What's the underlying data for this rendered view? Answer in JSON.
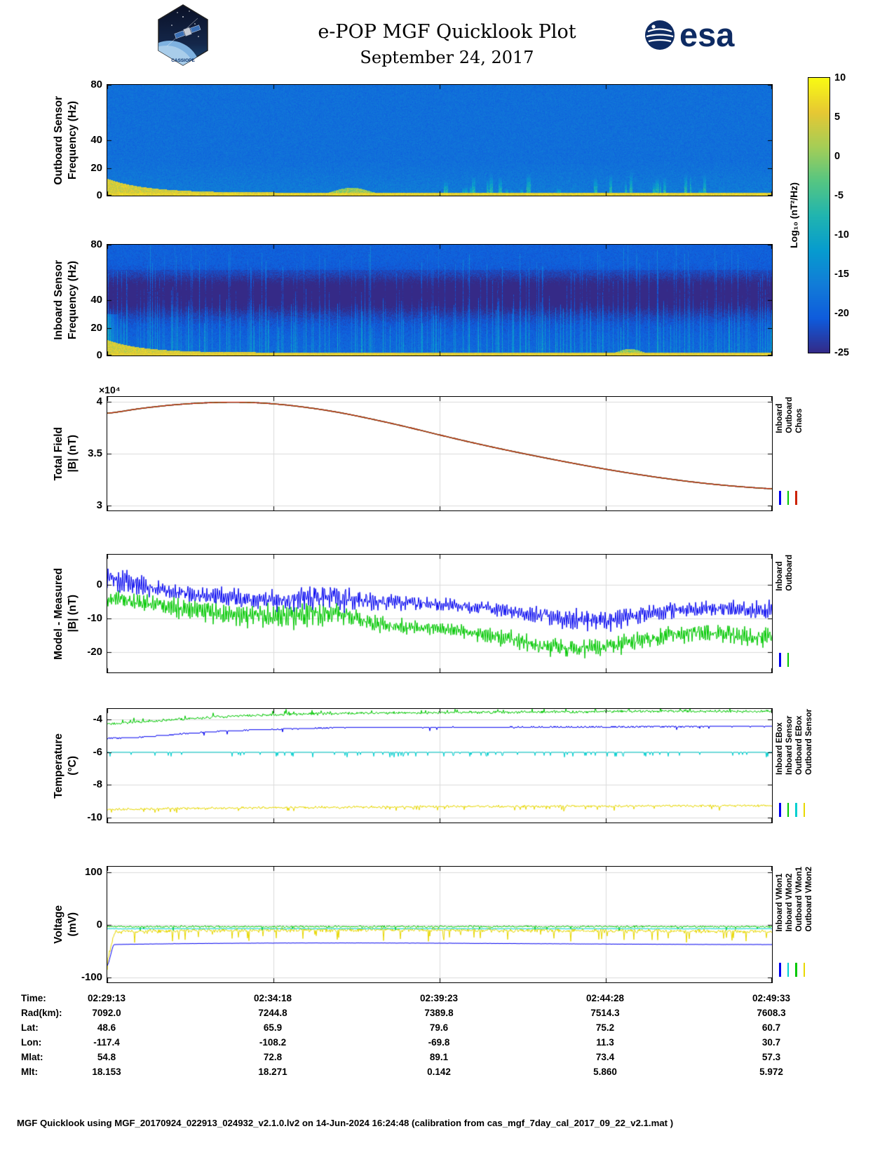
{
  "header": {
    "title": "e-POP MGF Quicklook Plot",
    "date": "September 24, 2017",
    "esa_logo_text": "esa",
    "cassiope_logo_text": "CASSIOPE"
  },
  "colorbar": {
    "label": "Log₁₀ (nT²/Hz)",
    "range": [
      -25,
      10
    ],
    "ticks": [
      10,
      5,
      0,
      -5,
      -10,
      -15,
      -20,
      -25
    ],
    "colormap": "parula",
    "colormap_stops": [
      "#352a87",
      "#0f5cdd",
      "#127dd8",
      "#079ccf",
      "#21b5b0",
      "#56c683",
      "#a6ce57",
      "#e7c834",
      "#f9fb14"
    ]
  },
  "chart_data": [
    {
      "type": "heatmap",
      "name": "outboard_spectrogram",
      "ylabel_lines": [
        "Outboard Sensor",
        "Frequency (Hz)"
      ],
      "ylim": [
        0,
        80
      ],
      "yticks": [
        0,
        20,
        40,
        80
      ],
      "ytick_labels": [
        "0",
        "20",
        "40",
        "80"
      ],
      "x_time_range": [
        "02:29:13",
        "02:49:33"
      ],
      "value_units": "Log₁₀ (nT²/Hz)",
      "background_level": -18,
      "noise_amp": 2.2,
      "elf_band_level": 6,
      "elf_band_top_hz": 3,
      "start_ridge_hz": 10,
      "burst_region_xfrac": [
        0.5,
        0.9
      ],
      "burst_count": 28,
      "seed": 42
    },
    {
      "type": "heatmap",
      "name": "inboard_spectrogram",
      "ylabel_lines": [
        "Inboard Sensor",
        "Frequency (Hz)"
      ],
      "ylim": [
        0,
        80
      ],
      "yticks": [
        0,
        20,
        40,
        80
      ],
      "ytick_labels": [
        "0",
        "20",
        "40",
        "80"
      ],
      "x_time_range": [
        "02:29:13",
        "02:49:33"
      ],
      "value_units": "Log₁₀ (nT²/Hz)",
      "background_level": -21,
      "noise_amp": 2.0,
      "dark_band_center_hz": 44,
      "dark_band_depth": 2.2,
      "stripe_count": 240,
      "elf_band_level": 5,
      "seed": 1234
    },
    {
      "type": "line",
      "name": "total_field",
      "ylabel_lines": [
        "Total Field",
        "|B| (nT)"
      ],
      "exp_label": "×10⁴",
      "ylim": [
        29520,
        40470
      ],
      "yticks": [
        30000,
        35000,
        40000
      ],
      "ytick_labels": [
        "3",
        "3.5",
        "4"
      ],
      "x_time_range": [
        "02:29:13",
        "02:49:33"
      ],
      "legend": {
        "names": [
          "Inboard",
          "Outboard",
          "Chaos"
        ],
        "colors": [
          "#0000f0",
          "#00c800",
          "#cc2200"
        ]
      },
      "shared_mean": [
        [
          0,
          38900
        ],
        [
          0.05,
          39350
        ],
        [
          0.1,
          39700
        ],
        [
          0.15,
          39900
        ],
        [
          0.2,
          39950
        ],
        [
          0.25,
          39800
        ],
        [
          0.3,
          39450
        ],
        [
          0.35,
          38950
        ],
        [
          0.4,
          38300
        ],
        [
          0.45,
          37580
        ],
        [
          0.5,
          36800
        ],
        [
          0.55,
          36050
        ],
        [
          0.6,
          35350
        ],
        [
          0.65,
          34700
        ],
        [
          0.7,
          34080
        ],
        [
          0.75,
          33500
        ],
        [
          0.8,
          32980
        ],
        [
          0.85,
          32520
        ],
        [
          0.9,
          32130
        ],
        [
          0.95,
          31830
        ],
        [
          1,
          31620
        ]
      ],
      "series": [
        {
          "name": "Inboard",
          "color": "#0000f0",
          "width": 1.4
        },
        {
          "name": "Outboard",
          "color": "#00c800",
          "width": 1.4
        },
        {
          "name": "Chaos",
          "color": "#cc2200",
          "width": 1.4
        }
      ]
    },
    {
      "type": "line",
      "name": "model_minus_measured",
      "ylabel_lines": [
        "Model - Measured",
        "|B| (nT)"
      ],
      "ylim": [
        -26,
        9
      ],
      "yticks": [
        -20,
        -10,
        0
      ],
      "ytick_labels": [
        "-20",
        "-10",
        "0"
      ],
      "x_time_range": [
        "02:29:13",
        "02:49:33"
      ],
      "legend": {
        "names": [
          "Inboard",
          "Outboard"
        ],
        "colors": [
          "#0000f0",
          "#00c800"
        ]
      },
      "series": [
        {
          "name": "Outboard",
          "color": "#00c800",
          "seed": 9,
          "oscf": 2.3,
          "noise": 0.5,
          "mean": [
            [
              0,
              -4
            ],
            [
              0.05,
              -5
            ],
            [
              0.1,
              -6.5
            ],
            [
              0.15,
              -8
            ],
            [
              0.2,
              -9
            ],
            [
              0.25,
              -9.5
            ],
            [
              0.3,
              -9
            ],
            [
              0.35,
              -8.5
            ],
            [
              0.4,
              -11.5
            ],
            [
              0.45,
              -12.5
            ],
            [
              0.5,
              -13
            ],
            [
              0.55,
              -14
            ],
            [
              0.6,
              -16
            ],
            [
              0.65,
              -18
            ],
            [
              0.7,
              -19
            ],
            [
              0.75,
              -18.5
            ],
            [
              0.8,
              -16.5
            ],
            [
              0.85,
              -15
            ],
            [
              0.9,
              -14
            ],
            [
              0.95,
              -15
            ],
            [
              1,
              -15.5
            ]
          ],
          "amp": [
            [
              0,
              2
            ],
            [
              0.1,
              3
            ],
            [
              0.2,
              3.5
            ],
            [
              0.3,
              4
            ],
            [
              0.4,
              2.5
            ],
            [
              0.5,
              2
            ],
            [
              0.6,
              2.5
            ],
            [
              0.7,
              3
            ],
            [
              0.8,
              2.5
            ],
            [
              1,
              3
            ]
          ]
        },
        {
          "name": "Inboard",
          "color": "#0000f0",
          "seed": 5,
          "oscf": 2.1,
          "noise": 0.5,
          "mean": [
            [
              0,
              2
            ],
            [
              0.04,
              0.5
            ],
            [
              0.08,
              -1.5
            ],
            [
              0.13,
              -3
            ],
            [
              0.2,
              -4
            ],
            [
              0.27,
              -4.5
            ],
            [
              0.33,
              -3.5
            ],
            [
              0.4,
              -5
            ],
            [
              0.47,
              -5.5
            ],
            [
              0.53,
              -6.5
            ],
            [
              0.6,
              -7.5
            ],
            [
              0.65,
              -9
            ],
            [
              0.7,
              -10
            ],
            [
              0.75,
              -10.5
            ],
            [
              0.8,
              -9
            ],
            [
              0.85,
              -7.5
            ],
            [
              0.9,
              -7
            ],
            [
              1,
              -7.5
            ]
          ],
          "amp": [
            [
              0,
              3.5
            ],
            [
              0.08,
              3
            ],
            [
              0.15,
              2.5
            ],
            [
              0.25,
              3.2
            ],
            [
              0.35,
              3.8
            ],
            [
              0.45,
              2
            ],
            [
              0.55,
              1.8
            ],
            [
              0.65,
              2.5
            ],
            [
              0.72,
              3.5
            ],
            [
              0.8,
              2.8
            ],
            [
              0.9,
              2.2
            ],
            [
              1,
              2.8
            ]
          ]
        }
      ]
    },
    {
      "type": "line",
      "name": "temperature",
      "ylabel_lines": [
        "Temperature",
        "(°C)"
      ],
      "ylim": [
        -10.3,
        -3.35
      ],
      "yticks": [
        -10,
        -8,
        -6,
        -4
      ],
      "ytick_labels": [
        "-10",
        "-8",
        "-6",
        "-4"
      ],
      "x_time_range": [
        "02:29:13",
        "02:49:33"
      ],
      "legend": {
        "names": [
          "Inboard EBox",
          "Inboard Sensor",
          "Outboard EBox",
          "Outboard Sensor"
        ],
        "colors": [
          "#0000f0",
          "#00c800",
          "#00d0d0",
          "#e8d800"
        ]
      },
      "series": [
        {
          "name": "Outboard Sensor",
          "color": "#e8d800",
          "seed": 21,
          "noise": 0.09,
          "spike": [
            0.05,
            -0.28
          ],
          "mean": [
            [
              0,
              -9.5
            ],
            [
              0.15,
              -9.42
            ],
            [
              0.3,
              -9.38
            ],
            [
              0.5,
              -9.33
            ],
            [
              0.7,
              -9.3
            ],
            [
              1,
              -9.27
            ]
          ]
        },
        {
          "name": "Outboard EBox",
          "color": "#00d0d0",
          "seed": 22,
          "noise": 0.015,
          "quant": 0.05,
          "spike": [
            0.06,
            -0.3
          ],
          "mean": [
            [
              0,
              -6.0
            ],
            [
              1,
              -6.0
            ]
          ]
        },
        {
          "name": "Inboard Sensor",
          "color": "#00c800",
          "seed": 23,
          "noise": 0.1,
          "spike": [
            0.04,
            0.25
          ],
          "mean": [
            [
              0,
              -4.25
            ],
            [
              0.08,
              -4.05
            ],
            [
              0.16,
              -3.85
            ],
            [
              0.25,
              -3.7
            ],
            [
              0.4,
              -3.6
            ],
            [
              0.6,
              -3.55
            ],
            [
              0.8,
              -3.5
            ],
            [
              1,
              -3.5
            ]
          ]
        },
        {
          "name": "Inboard EBox",
          "color": "#0000f0",
          "seed": 24,
          "noise": 0.03,
          "quant": 0.07,
          "spike": [
            0.02,
            -0.2
          ],
          "mean": [
            [
              0,
              -5.15
            ],
            [
              0.06,
              -5.05
            ],
            [
              0.12,
              -4.85
            ],
            [
              0.18,
              -4.7
            ],
            [
              0.25,
              -4.6
            ],
            [
              0.35,
              -4.5
            ],
            [
              0.5,
              -4.47
            ],
            [
              0.75,
              -4.45
            ],
            [
              1,
              -4.42
            ]
          ]
        }
      ]
    },
    {
      "type": "line",
      "name": "voltage",
      "ylabel_lines": [
        "Voltage",
        "(mV)"
      ],
      "ylim": [
        -110,
        110
      ],
      "yticks": [
        -100,
        0,
        100
      ],
      "ytick_labels": [
        "-100",
        "0",
        "100"
      ],
      "x_time_range": [
        "02:29:13",
        "02:49:33"
      ],
      "legend": {
        "names": [
          "Inboard VMon1",
          "Inboard VMon2",
          "Outboard VMon1",
          "Outboard VMon2"
        ],
        "colors": [
          "#0000f0",
          "#00d0d0",
          "#00c800",
          "#e8d800"
        ]
      },
      "series": [
        {
          "name": "Outboard VMon2",
          "color": "#e8d800",
          "seed": 31,
          "noise": 5,
          "spike": [
            0.06,
            -20
          ],
          "mean": [
            [
              0,
              -65
            ],
            [
              0.012,
              -14
            ],
            [
              1,
              -13
            ]
          ]
        },
        {
          "name": "Outboard VMon1",
          "color": "#00c800",
          "seed": 32,
          "noise": 2.2,
          "spike": [
            0.03,
            -7
          ],
          "mean": [
            [
              0,
              -4
            ],
            [
              1,
              -4
            ]
          ]
        },
        {
          "name": "Inboard VMon2",
          "color": "#00d0d0",
          "seed": 33,
          "noise": 0.8,
          "mean": [
            [
              0,
              -8
            ],
            [
              1,
              -8
            ]
          ]
        },
        {
          "name": "Inboard VMon1",
          "color": "#0000f0",
          "seed": 34,
          "noise": 0.3,
          "mean": [
            [
              0,
              -78
            ],
            [
              0.01,
              -38
            ],
            [
              1,
              -38
            ]
          ]
        }
      ]
    }
  ],
  "axis_table": {
    "rows": [
      {
        "label": "Time:",
        "values": [
          "02:29:13",
          "02:34:18",
          "02:39:23",
          "02:44:28",
          "02:49:33"
        ]
      },
      {
        "label": "Rad(km):",
        "values": [
          "7092.0",
          "7244.8",
          "7389.8",
          "7514.3",
          "7608.3"
        ]
      },
      {
        "label": "Lat:",
        "values": [
          "48.6",
          "65.9",
          "79.6",
          "75.2",
          "60.7"
        ]
      },
      {
        "label": "Lon:",
        "values": [
          "-117.4",
          "-108.2",
          "-69.8",
          "11.3",
          "30.7"
        ]
      },
      {
        "label": "Mlat:",
        "values": [
          "54.8",
          "72.8",
          "89.1",
          "73.4",
          "57.3"
        ]
      },
      {
        "label": "Mlt:",
        "values": [
          "18.153",
          "18.271",
          "0.142",
          "5.860",
          "5.972"
        ]
      }
    ]
  },
  "footer": {
    "text": "MGF Quicklook using MGF_20170924_022913_024932_v2.1.0.lv2 on 14-Jun-2024 16:24:48 (calibration from cas_mgf_7day_cal_2017_09_22_v2.1.mat )"
  }
}
